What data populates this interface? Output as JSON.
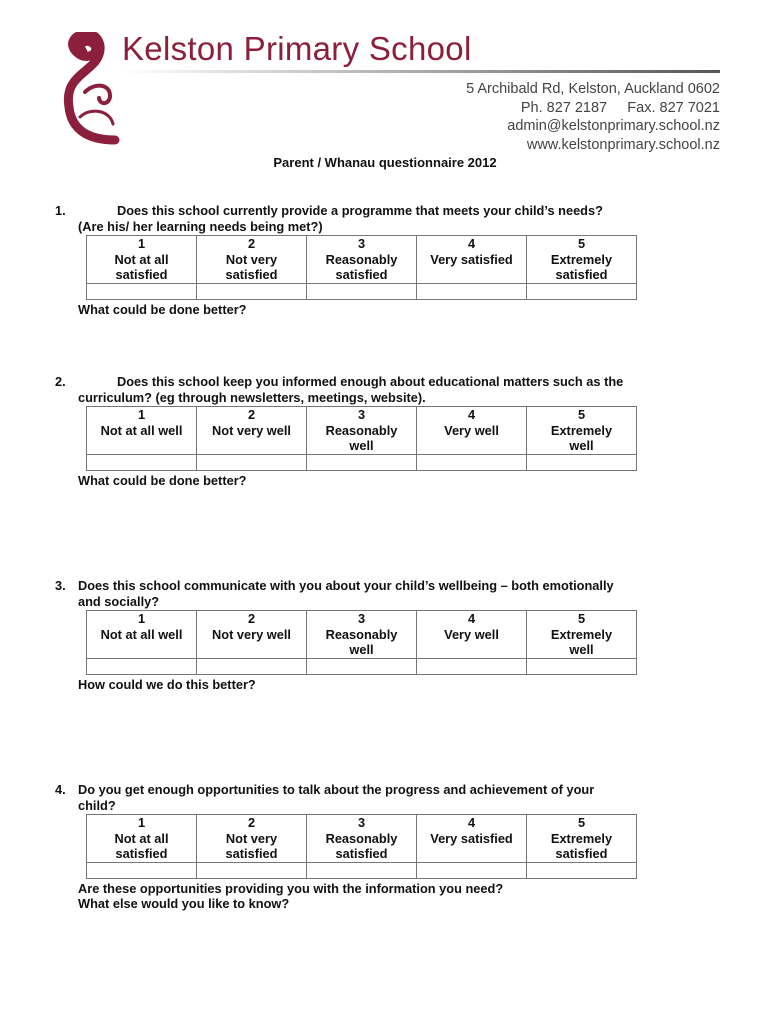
{
  "header": {
    "school_name": "Kelston Primary School",
    "address": "5 Archibald Rd, Kelston, Auckland 0602",
    "phone": "Ph. 827 2187",
    "fax": "Fax. 827 7021",
    "email": "admin@kelstonprimary.school.nz",
    "website": "www.kelstonprimary.school.nz",
    "brand_color": "#8b1f3c"
  },
  "title": "Parent / Whanau questionnaire 2012",
  "questions": [
    {
      "num": "1.",
      "line1": "Does this school currently provide a programme that meets your child’s needs?",
      "line2": "(Are his/ her learning needs being met?)",
      "scale": [
        {
          "n": "1",
          "label": "Not at all satisfied"
        },
        {
          "n": "2",
          "label": "Not very satisfied"
        },
        {
          "n": "3",
          "label": "Reasonably satisfied"
        },
        {
          "n": "4",
          "label": "Very satisfied"
        },
        {
          "n": "5",
          "label": "Extremely satisfied"
        }
      ],
      "follow1": "What could be done better?",
      "follow2": ""
    },
    {
      "num": "2.",
      "line1": "Does this school keep you informed enough about educational matters such as the",
      "line2": "curriculum? (eg through newsletters, meetings, website).",
      "scale": [
        {
          "n": "1",
          "label": "Not at all well"
        },
        {
          "n": "2",
          "label": "Not very well"
        },
        {
          "n": "3",
          "label": "Reasonably well"
        },
        {
          "n": "4",
          "label": "Very well"
        },
        {
          "n": "5",
          "label": "Extremely well"
        }
      ],
      "follow1": "What could be done better?",
      "follow2": ""
    },
    {
      "num": "3.",
      "line1": "Does this school communicate with you about your child’s wellbeing – both emotionally",
      "line2": "and socially?",
      "scale": [
        {
          "n": "1",
          "label": "Not at all well"
        },
        {
          "n": "2",
          "label": "Not very well"
        },
        {
          "n": "3",
          "label": "Reasonably well"
        },
        {
          "n": "4",
          "label": "Very well"
        },
        {
          "n": "5",
          "label": "Extremely well"
        }
      ],
      "follow1": "How could we do this better?",
      "follow2": ""
    },
    {
      "num": "4.",
      "line1": "Do you get enough opportunities to talk about the progress and achievement of your",
      "line2": "child?",
      "scale": [
        {
          "n": "1",
          "label": "Not at all satisfied"
        },
        {
          "n": "2",
          "label": "Not very satisfied"
        },
        {
          "n": "3",
          "label": "Reasonably satisfied"
        },
        {
          "n": "4",
          "label": "Very satisfied"
        },
        {
          "n": "5",
          "label": "Extremely satisfied"
        }
      ],
      "follow1": "Are these opportunities providing you with the information you need?",
      "follow2": "What else would you like to know?"
    }
  ]
}
